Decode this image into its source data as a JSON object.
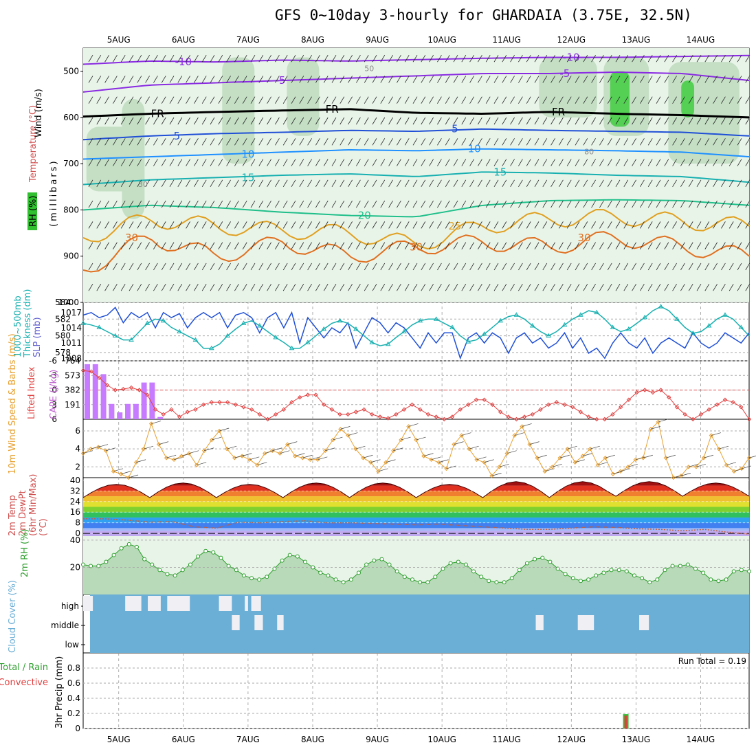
{
  "title": "GFS 0~10day 3-hourly for GHARDAIA (3.75E, 32.5N)",
  "colors": {
    "purple": "#8a2be2",
    "black": "#000000",
    "blue": "#1f4fd6",
    "skyblue": "#1e90ff",
    "teal": "#17b0b0",
    "green": "#1fbf8a",
    "orange": "#e0a020",
    "darkorange": "#e07020",
    "red": "#e02040",
    "magenta": "#d0107a",
    "rhgreen": "#9fd49f",
    "cloud": "#6baed6",
    "cape": "#c77cff",
    "li": "#e04040",
    "wind": "#e8a030",
    "rh2m": "#2a9d2a"
  },
  "chart_data": [
    {
      "type": "line",
      "panel": "upper-air",
      "ylabel_parts": [
        "Wind (m/s)",
        "Temperature (°C)",
        "RH (%)",
        "(millibars)"
      ],
      "yticks": [
        "500",
        "600",
        "700",
        "800",
        "900",
        "1000"
      ],
      "ylim": [
        450,
        1000
      ],
      "x_dates": [
        "5AUG",
        "6AUG",
        "7AUG",
        "8AUG",
        "9AUG",
        "10AUG",
        "11AUG",
        "12AUG",
        "13AUG",
        "14AUG"
      ],
      "x_range_days": [
        -0.55,
        9.75
      ],
      "freezing_level_label": "FR",
      "isotherms": [
        {
          "label": "-10",
          "color": "purple",
          "y": [
            485,
            478,
            480,
            476,
            478,
            475,
            472,
            470,
            470,
            468,
            466
          ],
          "label_at": [
            1.0,
            7.0
          ]
        },
        {
          "label": "-5",
          "color": "purple",
          "y": [
            545,
            530,
            525,
            520,
            515,
            510,
            505,
            505,
            502,
            505,
            520
          ],
          "label_at": [
            2.5,
            6.9
          ]
        },
        {
          "label": "FR",
          "color": "black",
          "y": [
            598,
            592,
            588,
            585,
            582,
            590,
            592,
            588,
            592,
            595,
            600
          ],
          "label_at": [
            0.6,
            3.3,
            6.8
          ]
        },
        {
          "label": "5",
          "color": "blue",
          "y": [
            648,
            640,
            635,
            632,
            628,
            630,
            625,
            628,
            630,
            632,
            640
          ],
          "label_at": [
            0.9,
            5.2
          ]
        },
        {
          "label": "10",
          "color": "skyblue",
          "y": [
            690,
            685,
            680,
            675,
            670,
            672,
            668,
            670,
            672,
            675,
            685
          ],
          "label_at": [
            2.0,
            5.5
          ]
        },
        {
          "label": "15",
          "color": "teal",
          "y": [
            745,
            735,
            730,
            725,
            722,
            728,
            718,
            720,
            725,
            728,
            740
          ],
          "label_at": [
            2.0,
            5.9
          ]
        },
        {
          "label": "20",
          "color": "green",
          "y": [
            800,
            790,
            795,
            805,
            812,
            815,
            790,
            780,
            778,
            780,
            790
          ],
          "label_at": [
            3.8
          ]
        },
        {
          "label": "25",
          "color": "orange",
          "y": [
            860,
            820,
            835,
            845,
            850,
            875,
            835,
            820,
            815,
            825,
            835
          ],
          "label_at": [
            5.2
          ]
        },
        {
          "label": "30",
          "color": "darkorange",
          "y": [
            930,
            860,
            900,
            870,
            900,
            880,
            870,
            880,
            860,
            880,
            900
          ],
          "label_at": [
            0.2,
            4.6,
            7.2
          ]
        }
      ],
      "rh_labels": [
        "30",
        "50",
        "80"
      ]
    },
    {
      "type": "line",
      "panel": "slp-thickness",
      "ylabel": "SLP (mb)",
      "ylabel2": "Thickness (dm)",
      "ylabel2b": "1000~500mb",
      "yticks_left": [
        "584",
        "582",
        "580",
        "578"
      ],
      "yticks_right": [
        "1017",
        "1014",
        "1011",
        "1008"
      ],
      "ylim_left": [
        577,
        584
      ],
      "ylim_right": [
        1007.5,
        1019
      ],
      "series": [
        {
          "name": "SLP",
          "color": "blue",
          "values": [
            1016.5,
            1017,
            1016,
            1016.5,
            1018,
            1015,
            1017,
            1016,
            1017,
            1014,
            1017,
            1016,
            1016.8,
            1014,
            1016,
            1017,
            1016,
            1017,
            1014,
            1016.5,
            1017,
            1016,
            1013,
            1016,
            1017,
            1014,
            1017,
            1011,
            1016,
            1014,
            1012,
            1014,
            1013,
            1015,
            1010,
            1013,
            1016,
            1015,
            1013,
            1015,
            1014,
            1012,
            1010,
            1013,
            1011,
            1013,
            1013,
            1008,
            1012,
            1013,
            1011,
            1013,
            1012,
            1009,
            1012,
            1013,
            1011,
            1012,
            1010,
            1011,
            1013,
            1010,
            1012,
            1009,
            1010,
            1008,
            1011,
            1013,
            1011,
            1010,
            1012,
            1009,
            1011,
            1012,
            1011,
            1010,
            1013,
            1011,
            1010,
            1011,
            1013,
            1012,
            1011,
            1013
          ]
        },
        {
          "name": "Thickness",
          "color": "teal",
          "values": [
            581.5,
            581.3,
            581,
            580.5,
            580,
            579.5,
            579.5,
            580.5,
            581.5,
            582,
            581.8,
            581,
            580.5,
            580,
            579.5,
            578.5,
            578.5,
            579,
            580,
            580.8,
            581.5,
            581.8,
            581.2,
            580.5,
            579.8,
            579.2,
            578.5,
            578.5,
            579.2,
            580,
            580.8,
            581.5,
            581.8,
            581.5,
            580.8,
            580,
            579.2,
            578.8,
            579,
            579.8,
            580.5,
            581.3,
            581.8,
            582,
            582,
            581.5,
            581,
            580,
            579.3,
            579.5,
            580.2,
            581,
            581.8,
            582.3,
            582.5,
            582,
            581.2,
            580.5,
            580,
            580.5,
            581.3,
            582,
            582.5,
            583,
            582.8,
            582,
            581,
            580.5,
            580.8,
            581.5,
            582.2,
            583,
            583.5,
            583,
            582,
            581,
            580.3,
            580.5,
            581.2,
            582,
            582.5,
            582,
            581,
            580
          ]
        }
      ]
    },
    {
      "type": "bar",
      "panel": "cape-li",
      "ylabel": "CAPE (J/kg)",
      "ylabel2": "Lifted Index",
      "yticks_left": [
        "-6",
        "-3",
        "0",
        "3",
        "6"
      ],
      "yticks_right": [
        "764",
        "573",
        "382",
        "191"
      ],
      "cape_ylim": [
        0,
        764
      ],
      "li_ylim": [
        -6,
        6
      ],
      "cape_values": [
        720,
        720,
        590,
        200,
        90,
        200,
        200,
        480,
        480,
        30
      ],
      "li_values": [
        -4,
        -3.8,
        -2.5,
        -1,
        0,
        -0.2,
        -0.5,
        0,
        1,
        4,
        5,
        4,
        5.5,
        4.5,
        4,
        3,
        2.5,
        2.5,
        2.5,
        3,
        3.5,
        4,
        5,
        6,
        5,
        4,
        2.5,
        1.5,
        1,
        1,
        3,
        4,
        5,
        5,
        4.5,
        4,
        5,
        5.5,
        5.8,
        5,
        4,
        3,
        4,
        5,
        5.5,
        6,
        5.5,
        4,
        3,
        2,
        2,
        3,
        4.5,
        5.5,
        6,
        5.5,
        5,
        4,
        3,
        2.5,
        3,
        3.5,
        4.5,
        5.5,
        6,
        6,
        5,
        3.5,
        2,
        0.5,
        0,
        0.5,
        0,
        1.5,
        3.5,
        5,
        6,
        5,
        4,
        3,
        2,
        2.5,
        3.5,
        6
      ]
    },
    {
      "type": "line",
      "panel": "wind10m",
      "ylabel": "10m Wind Speed & Barbs (m/s)",
      "yticks": [
        "6",
        "4",
        "2"
      ],
      "ylim": [
        0.8,
        7.3
      ],
      "values": [
        3.5,
        4,
        4.2,
        3.8,
        1.5,
        1.2,
        0.8,
        2.5,
        4,
        6.8,
        4.5,
        3,
        2.8,
        3.2,
        3.5,
        2.2,
        3.8,
        5,
        6,
        4,
        3,
        3.2,
        2.8,
        2.2,
        3.5,
        3.8,
        3.5,
        4.5,
        3.2,
        3,
        2.8,
        2.8,
        3.8,
        5,
        6.2,
        5.5,
        4,
        3,
        2.5,
        1.5,
        2.5,
        3.8,
        5,
        6.5,
        5,
        3.2,
        2.8,
        2.5,
        1.8,
        4.5,
        5.5,
        4,
        2.8,
        2.5,
        1,
        2,
        3.5,
        5.5,
        6.5,
        4.5,
        3,
        1.5,
        2,
        3,
        4,
        2.5,
        3.2,
        4,
        2.2,
        3,
        1.2,
        1.5,
        2,
        2.8,
        3,
        6.2,
        7,
        3,
        0.8,
        1,
        2,
        2,
        3,
        5.5,
        4,
        2.2,
        1.5,
        1.8,
        3
      ]
    },
    {
      "type": "area",
      "panel": "temp2m",
      "ylabel": "2m Temp 2m DewPt (6hr Min/Max) (°C)",
      "ylabel_lines": [
        "2m Temp",
        "2m DewPt",
        "(6hr Min/Max)",
        "(°C)"
      ],
      "yticks": [
        "40",
        "32",
        "24",
        "16",
        "8",
        "0"
      ],
      "ylim": [
        -2,
        42
      ],
      "tmax": [
        37,
        38,
        37,
        38,
        38,
        37,
        39,
        39,
        39,
        38
      ],
      "tmin": [
        27,
        27,
        27,
        27,
        27,
        27,
        27,
        27,
        28,
        28
      ],
      "dewpt": [
        11,
        11,
        10,
        8.5,
        9,
        5,
        4,
        8.5,
        8,
        9,
        9.5,
        8,
        8,
        7.5,
        7,
        6.5,
        7,
        6,
        5,
        4,
        3,
        3,
        4,
        5,
        4.5,
        3.5,
        3,
        2,
        3,
        1,
        -0.5
      ]
    },
    {
      "type": "area",
      "panel": "rh2m",
      "ylabel": "2m RH (%)",
      "yticks": [
        "40",
        "20"
      ],
      "ylim": [
        0,
        43
      ],
      "values": [
        22,
        21,
        21,
        24,
        29,
        34,
        37,
        35,
        26,
        22,
        18,
        15,
        14,
        18,
        22,
        28,
        32,
        31,
        27,
        21,
        18,
        14,
        12,
        11,
        13,
        19,
        25,
        29,
        28,
        24,
        20,
        16,
        14,
        11,
        9,
        11,
        16,
        22,
        25,
        26,
        22,
        17,
        13,
        11,
        9,
        9,
        13,
        19,
        23,
        24,
        22,
        17,
        13,
        10,
        9,
        9,
        12,
        18,
        23,
        26,
        27,
        24,
        19,
        15,
        12,
        10,
        11,
        14,
        16,
        18,
        18,
        17,
        14,
        12,
        9,
        11,
        18,
        21,
        21,
        22,
        19,
        16,
        11,
        10,
        11,
        17,
        18,
        17
      ]
    },
    {
      "type": "bar",
      "panel": "cloud-cover",
      "ylabel": "Cloud Cover (%)",
      "ylevels": [
        "high",
        "middle",
        "low"
      ],
      "high_gaps": [
        [
          0,
          0.15
        ],
        [
          0.65,
          0.9
        ],
        [
          1.0,
          1.2
        ],
        [
          1.3,
          1.65
        ],
        [
          2.1,
          2.3
        ],
        [
          2.5,
          2.55
        ],
        [
          2.6,
          2.75
        ]
      ],
      "middle_gaps": [
        [
          2.3,
          2.42
        ],
        [
          2.65,
          2.78
        ],
        [
          3.0,
          3.1
        ],
        [
          7.0,
          7.12
        ],
        [
          7.65,
          7.9
        ],
        [
          8.6,
          8.75
        ]
      ]
    },
    {
      "type": "bar",
      "panel": "precip",
      "ylabel": "3hr Precip (mm)",
      "ylabel2": "Total / Rain",
      "ylabel2b": "Convective",
      "yticks": [
        "0.8",
        "0.6",
        "0.4",
        "0.2",
        "0"
      ],
      "ylim": [
        0,
        1.0
      ],
      "run_total_label": "Run Total = 0.19",
      "total_x_day": 7.8,
      "total_value": 0.19,
      "convective_value": 0.17
    }
  ]
}
